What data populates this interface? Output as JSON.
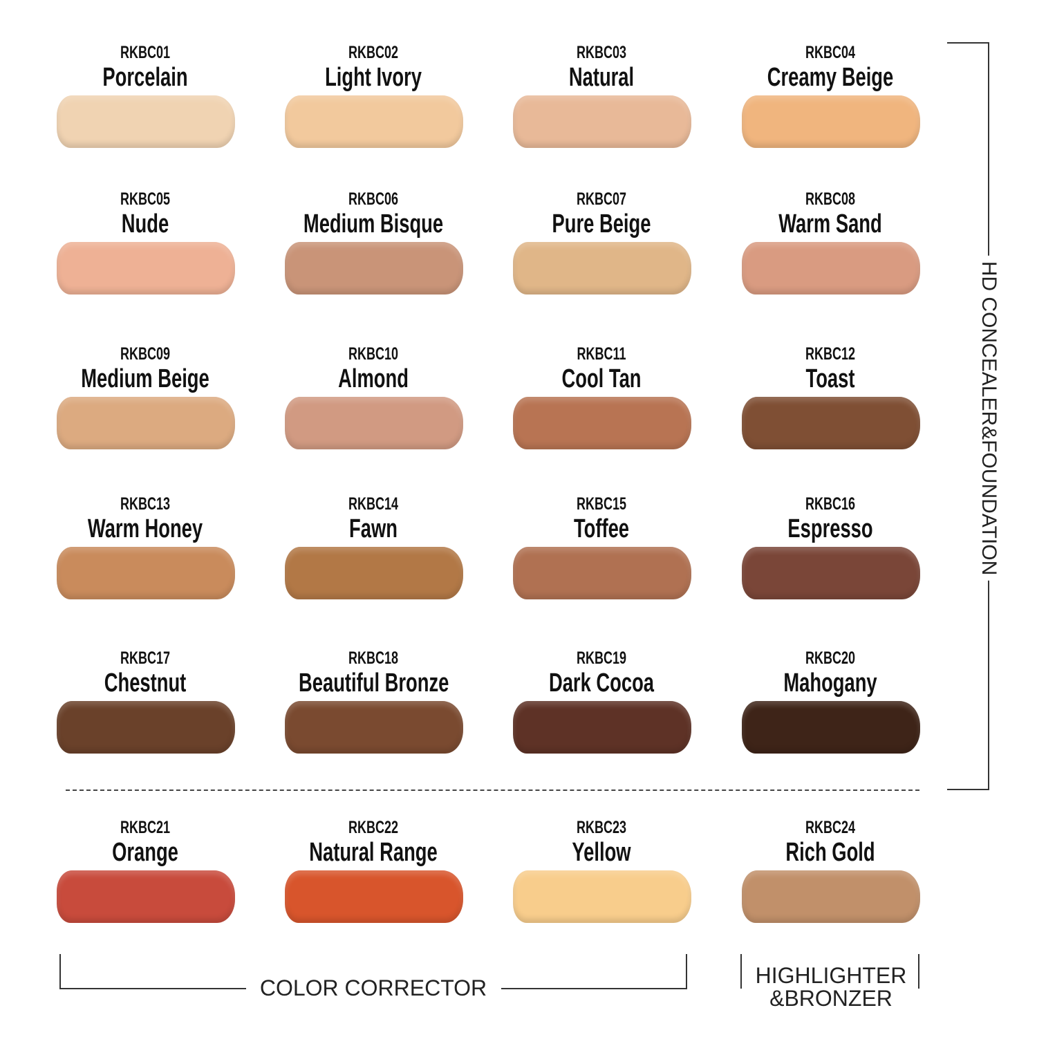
{
  "shades": [
    {
      "code": "RKBC01",
      "name": "Porcelain",
      "color": "#f0d3b2"
    },
    {
      "code": "RKBC02",
      "name": "Light Ivory",
      "color": "#f2c99d"
    },
    {
      "code": "RKBC03",
      "name": "Natural",
      "color": "#e8b998"
    },
    {
      "code": "RKBC04",
      "name": "Creamy Beige",
      "color": "#f0b57e"
    },
    {
      "code": "RKBC05",
      "name": "Nude",
      "color": "#eeb195"
    },
    {
      "code": "RKBC06",
      "name": "Medium Bisque",
      "color": "#c99478"
    },
    {
      "code": "RKBC07",
      "name": "Pure Beige",
      "color": "#e0b688"
    },
    {
      "code": "RKBC08",
      "name": "Warm Sand",
      "color": "#d99b81"
    },
    {
      "code": "RKBC09",
      "name": "Medium Beige",
      "color": "#dcaa80"
    },
    {
      "code": "RKBC10",
      "name": "Almond",
      "color": "#d19a82"
    },
    {
      "code": "RKBC11",
      "name": "Cool Tan",
      "color": "#b87453"
    },
    {
      "code": "RKBC12",
      "name": "Toast",
      "color": "#7f4f34"
    },
    {
      "code": "RKBC13",
      "name": "Warm Honey",
      "color": "#c98b5c"
    },
    {
      "code": "RKBC14",
      "name": "Fawn",
      "color": "#b27846"
    },
    {
      "code": "RKBC15",
      "name": "Toffee",
      "color": "#b07152"
    },
    {
      "code": "RKBC16",
      "name": "Espresso",
      "color": "#7a4638"
    },
    {
      "code": "RKBC17",
      "name": "Chestnut",
      "color": "#6a412a"
    },
    {
      "code": "RKBC18",
      "name": "Beautiful Bronze",
      "color": "#7a4a30"
    },
    {
      "code": "RKBC19",
      "name": "Dark Cocoa",
      "color": "#5e3226"
    },
    {
      "code": "RKBC20",
      "name": "Mahogany",
      "color": "#3e2418"
    },
    {
      "code": "RKBC21",
      "name": "Orange",
      "color": "#c84b3c"
    },
    {
      "code": "RKBC22",
      "name": "Natural Range",
      "color": "#d8552c"
    },
    {
      "code": "RKBC23",
      "name": "Yellow",
      "color": "#f8cd8c"
    },
    {
      "code": "RKBC24",
      "name": "Rich Gold",
      "color": "#c1906a"
    }
  ],
  "labels": {
    "foundation": "HD CONCEALER&FOUNDATION",
    "corrector": "COLOR CORRECTOR",
    "highlighter_line1": "HIGHLIGHTER",
    "highlighter_line2": "&BRONZER"
  }
}
